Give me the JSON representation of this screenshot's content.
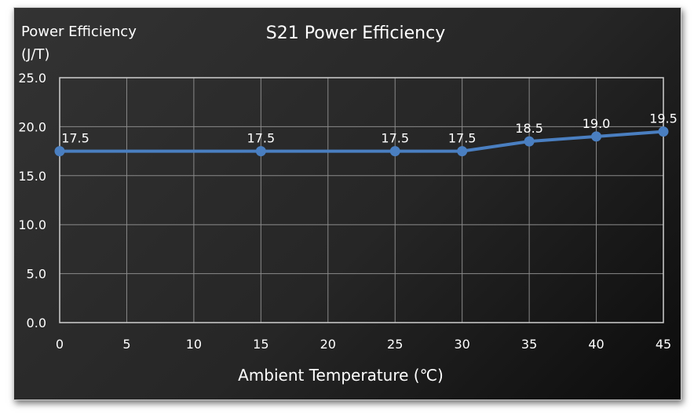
{
  "chart_data": {
    "type": "line",
    "title": "S21 Power Efficiency",
    "ylabel": "Power Efficiency (J/T)",
    "ylabel_lines": [
      "Power Efficiency",
      "(J/T)"
    ],
    "xlabel": "Ambient Temperature (℃)",
    "x": [
      0,
      15,
      25,
      30,
      35,
      40,
      45
    ],
    "values": [
      17.5,
      17.5,
      17.5,
      17.5,
      18.5,
      19.0,
      19.5
    ],
    "data_labels": [
      "17.5",
      "17.5",
      "17.5",
      "17.5",
      "18.5",
      "19.0",
      "19.5"
    ],
    "xlim": [
      0,
      45
    ],
    "ylim": [
      0,
      25
    ],
    "x_ticks": [
      "0",
      "5",
      "10",
      "15",
      "20",
      "25",
      "30",
      "35",
      "40",
      "45"
    ],
    "y_ticks": [
      "0.0",
      "5.0",
      "10.0",
      "15.0",
      "20.0",
      "25.0"
    ],
    "grid": true,
    "line_color": "#4a7fc1",
    "background_color": "#2a2a2a",
    "grid_color": "#8a8a8a"
  }
}
